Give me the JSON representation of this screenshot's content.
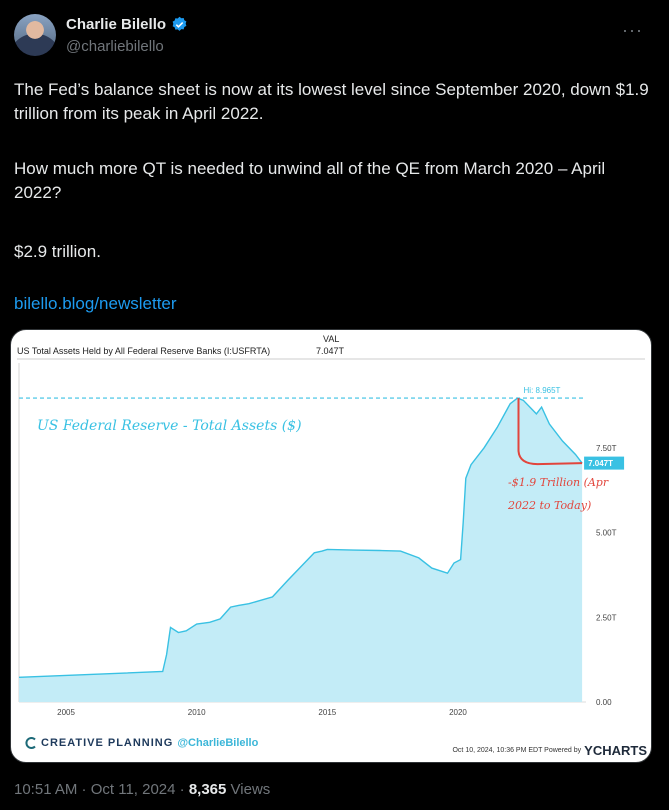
{
  "author": {
    "name": "Charlie Bilello",
    "handle": "@charliebilello"
  },
  "menu_icon": "more-icon",
  "tweet": {
    "p1": "The Fed’s balance sheet is now at its lowest level since September 2020, down $1.9 trillion from its peak in April 2022.",
    "p2": "How much more QT is needed to unwind all of the QE from March 2020 – April 2022?",
    "p3": "$2.9 trillion.",
    "link": "bilello.blog/newsletter"
  },
  "chart_data": {
    "type": "area",
    "title": "US Total Assets Held by All Federal Reserve Banks (I:USFRTA)",
    "val_header": "VAL",
    "val_value": "7.047T",
    "overlay_title": "US Federal Reserve - Total Assets ($)",
    "hi_label": "Hi: 8.965T",
    "current_label": "7.047T",
    "annotation_line1": "-$1.9 Trillion (Apr",
    "annotation_line2": "2022 to Today)",
    "x_ticks": [
      "2005",
      "2010",
      "2015",
      "2020"
    ],
    "y_ticks": [
      "0.00",
      "2.50T",
      "5.00T",
      "7.50T"
    ],
    "ylim": [
      0,
      10
    ],
    "xlim": [
      2003.2,
      2024.9
    ],
    "series": [
      {
        "x": [
          2003.2,
          2008.7,
          2008.85,
          2009.0,
          2009.3,
          2009.6,
          2010.0,
          2010.5,
          2010.9,
          2011.3,
          2011.6,
          2012.0,
          2012.9,
          2013.5,
          2014.0,
          2014.5,
          2014.8,
          2015.0,
          2016.0,
          2017.0,
          2017.8,
          2018.5,
          2019.0,
          2019.6,
          2019.85,
          2020.1,
          2020.2,
          2020.3,
          2020.5,
          2021.0,
          2021.5,
          2022.0,
          2022.28,
          2022.5,
          2023.0,
          2023.2,
          2023.5,
          2024.0,
          2024.5,
          2024.75
        ],
        "values": [
          0.73,
          0.9,
          1.4,
          2.2,
          2.05,
          2.1,
          2.3,
          2.35,
          2.45,
          2.8,
          2.85,
          2.9,
          3.1,
          3.6,
          4.0,
          4.4,
          4.45,
          4.5,
          4.48,
          4.47,
          4.45,
          4.25,
          3.95,
          3.8,
          4.1,
          4.2,
          5.3,
          6.6,
          7.0,
          7.5,
          8.1,
          8.8,
          8.965,
          8.9,
          8.5,
          8.7,
          8.2,
          7.7,
          7.3,
          7.047
        ]
      }
    ]
  },
  "branding": {
    "left": "CREATIVE PLANNING",
    "handle": "@CharlieBilello",
    "timestamp": "Oct 10, 2024, 10:36 PM EDT Powered by",
    "ycharts": "YCHARTS"
  },
  "footer": {
    "time": "10:51 AM · Oct 11, 2024 · ",
    "views": "8,365",
    "views_label": " Views"
  }
}
